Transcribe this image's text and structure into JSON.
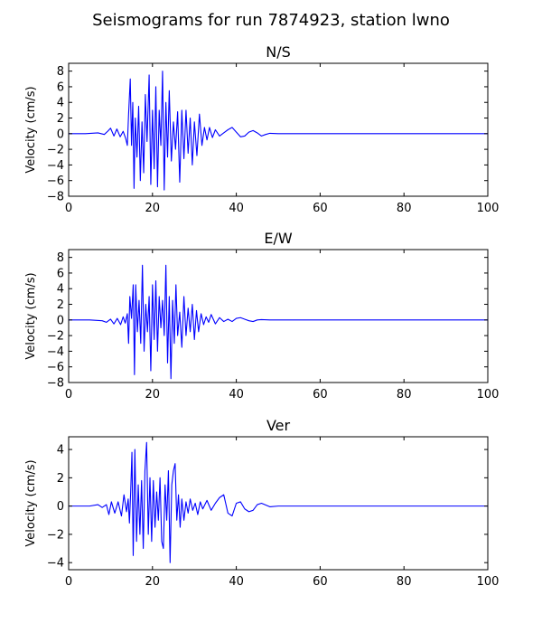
{
  "figure_title": "Seismograms for run 7874923, station lwno",
  "chart_data": [
    {
      "type": "line",
      "title": "N/S",
      "xlabel": "",
      "ylabel": "Velocity (cm/s)",
      "xlim": [
        0,
        100
      ],
      "ylim": [
        -8,
        9
      ],
      "xticks": [
        0,
        20,
        40,
        60,
        80,
        100
      ],
      "yticks": [
        -8,
        -6,
        -4,
        -2,
        0,
        2,
        4,
        6,
        8
      ],
      "grid": false,
      "series": [
        {
          "color": "#0000ff",
          "x": [
            0,
            4,
            7,
            8.5,
            9.3,
            10,
            10.8,
            11.5,
            12.3,
            13,
            13.6,
            14.0,
            14.3,
            14.7,
            15.0,
            15.3,
            15.6,
            15.9,
            16.3,
            16.7,
            17.1,
            17.5,
            17.9,
            18.3,
            18.7,
            19.2,
            19.6,
            20.0,
            20.4,
            20.8,
            21.2,
            21.6,
            22.0,
            22.4,
            22.8,
            23.2,
            23.6,
            24.0,
            24.5,
            25.0,
            25.5,
            26.0,
            26.5,
            27.0,
            27.5,
            28.0,
            28.5,
            29.0,
            29.5,
            30.0,
            30.6,
            31.2,
            31.8,
            32.4,
            33.0,
            33.6,
            34.3,
            35.0,
            36.0,
            37.0,
            38.0,
            39.0,
            40.0,
            41.0,
            42.0,
            43.0,
            44.0,
            45.0,
            46.0,
            47.0,
            48.0,
            50.0,
            60.0,
            80.0,
            100.0
          ],
          "y": [
            0,
            0,
            0.1,
            -0.1,
            0.3,
            0.7,
            -0.3,
            0.6,
            -0.4,
            0.3,
            -0.6,
            -1.5,
            2.5,
            7.0,
            -1.5,
            4.0,
            -7.0,
            2.0,
            -3.0,
            3.5,
            -6.0,
            1.5,
            -5.0,
            5.0,
            -1.0,
            7.5,
            -6.5,
            3.0,
            -4.5,
            6.0,
            -6.8,
            3.0,
            -1.5,
            8.0,
            -7.2,
            4.0,
            -3.0,
            5.5,
            -3.5,
            1.5,
            -2.0,
            2.8,
            -6.2,
            3.0,
            -3.2,
            3.0,
            -2.5,
            2.0,
            -4.0,
            1.5,
            -2.8,
            2.5,
            -1.5,
            0.8,
            -0.8,
            0.8,
            -0.5,
            0.5,
            -0.3,
            0.1,
            0.5,
            0.8,
            0.2,
            -0.4,
            -0.3,
            0.2,
            0.4,
            0.1,
            -0.3,
            -0.1,
            0.05,
            0,
            0,
            0,
            0
          ]
        }
      ]
    },
    {
      "type": "line",
      "title": "E/W",
      "xlabel": "",
      "ylabel": "Velocity (cm/s)",
      "xlim": [
        0,
        100
      ],
      "ylim": [
        -8,
        9
      ],
      "xticks": [
        0,
        20,
        40,
        60,
        80,
        100
      ],
      "yticks": [
        -8,
        -6,
        -4,
        -2,
        0,
        2,
        4,
        6,
        8
      ],
      "grid": false,
      "series": [
        {
          "color": "#0000ff",
          "x": [
            0,
            5,
            8,
            9,
            10,
            10.8,
            11.6,
            12.4,
            13.0,
            13.5,
            14.0,
            14.3,
            14.6,
            15.0,
            15.4,
            15.7,
            16.0,
            16.4,
            16.8,
            17.2,
            17.6,
            18.0,
            18.4,
            18.8,
            19.2,
            19.6,
            20.0,
            20.4,
            20.8,
            21.2,
            21.6,
            22.0,
            22.4,
            22.8,
            23.2,
            23.6,
            24.0,
            24.4,
            24.8,
            25.2,
            25.6,
            26.0,
            26.5,
            27.0,
            27.5,
            28.0,
            28.5,
            29.0,
            29.5,
            30.0,
            30.5,
            31.0,
            31.6,
            32.2,
            32.8,
            33.4,
            34.0,
            35.0,
            36.0,
            37.0,
            38.0,
            39.0,
            40.0,
            41.0,
            42.0,
            43.0,
            44.0,
            45.0,
            46.0,
            48.0,
            50.0,
            60.0,
            80.0,
            100.0
          ],
          "y": [
            0,
            0,
            -0.1,
            -0.3,
            0.1,
            -0.5,
            0.2,
            -0.6,
            0.4,
            -0.4,
            0.8,
            -3.0,
            3.0,
            0.2,
            4.5,
            -7.0,
            4.5,
            -1.5,
            2.5,
            -3.0,
            7.0,
            -4.0,
            2.0,
            -1.5,
            3.0,
            -6.5,
            4.5,
            -2.5,
            5.0,
            -4.0,
            3.0,
            -1.0,
            2.5,
            -2.0,
            7.0,
            -5.5,
            3.0,
            -7.5,
            2.5,
            -3.0,
            4.5,
            -2.0,
            1.0,
            -3.5,
            3.0,
            -2.0,
            1.5,
            -1.5,
            2.0,
            -2.5,
            1.2,
            -1.5,
            0.8,
            -0.6,
            0.4,
            -0.3,
            0.7,
            -0.5,
            0.3,
            -0.2,
            0.1,
            -0.2,
            0.2,
            0.3,
            0.1,
            -0.1,
            -0.2,
            0,
            0.05,
            0,
            0,
            0,
            0,
            0
          ]
        }
      ]
    },
    {
      "type": "line",
      "title": "Ver",
      "xlabel": "",
      "ylabel": "Velocity (cm/s)",
      "xlim": [
        0,
        100
      ],
      "ylim": [
        -4.5,
        4.9
      ],
      "xticks": [
        0,
        20,
        40,
        60,
        80,
        100
      ],
      "yticks": [
        -4,
        -2,
        0,
        2,
        4
      ],
      "grid": false,
      "series": [
        {
          "color": "#0000ff",
          "x": [
            0,
            5,
            7,
            8,
            9,
            9.6,
            10.2,
            11.0,
            11.8,
            12.6,
            13.2,
            13.8,
            14.2,
            14.5,
            14.8,
            15.1,
            15.4,
            15.8,
            16.2,
            16.6,
            17.0,
            17.4,
            17.8,
            18.2,
            18.6,
            19.0,
            19.4,
            19.8,
            20.2,
            20.6,
            21.0,
            21.4,
            21.8,
            22.2,
            22.6,
            23.0,
            23.4,
            23.8,
            24.2,
            24.6,
            25.0,
            25.4,
            25.8,
            26.2,
            26.6,
            27.0,
            27.5,
            28.0,
            28.5,
            29.0,
            29.6,
            30.2,
            30.8,
            31.4,
            32.0,
            33.0,
            34.0,
            35.0,
            36.0,
            37.0,
            38.0,
            39.0,
            40.0,
            41.0,
            42.0,
            43.0,
            44.0,
            45.0,
            46.0,
            48.0,
            50.0,
            60.0,
            80.0,
            100.0
          ],
          "y": [
            0,
            0,
            0.1,
            -0.1,
            0.1,
            -0.6,
            0.3,
            -0.5,
            0.3,
            -0.7,
            0.8,
            -0.4,
            0.5,
            -1.2,
            1.0,
            3.8,
            -3.5,
            4.0,
            -2.5,
            1.5,
            -2.0,
            1.8,
            -3.0,
            2.5,
            4.5,
            -2.0,
            2.0,
            -2.5,
            1.8,
            -1.5,
            1.0,
            -1.0,
            2.0,
            -2.5,
            -3.0,
            1.5,
            -1.0,
            2.5,
            -4.0,
            1.5,
            2.5,
            3.0,
            -1.0,
            0.8,
            -1.5,
            0.5,
            -1.0,
            0.3,
            -0.5,
            0.5,
            -0.3,
            0.2,
            -0.6,
            0.3,
            -0.2,
            0.4,
            -0.3,
            0.2,
            0.6,
            0.8,
            -0.5,
            -0.7,
            0.2,
            0.3,
            -0.2,
            -0.4,
            -0.3,
            0.1,
            0.2,
            -0.05,
            0,
            0,
            0,
            0
          ]
        }
      ]
    }
  ]
}
